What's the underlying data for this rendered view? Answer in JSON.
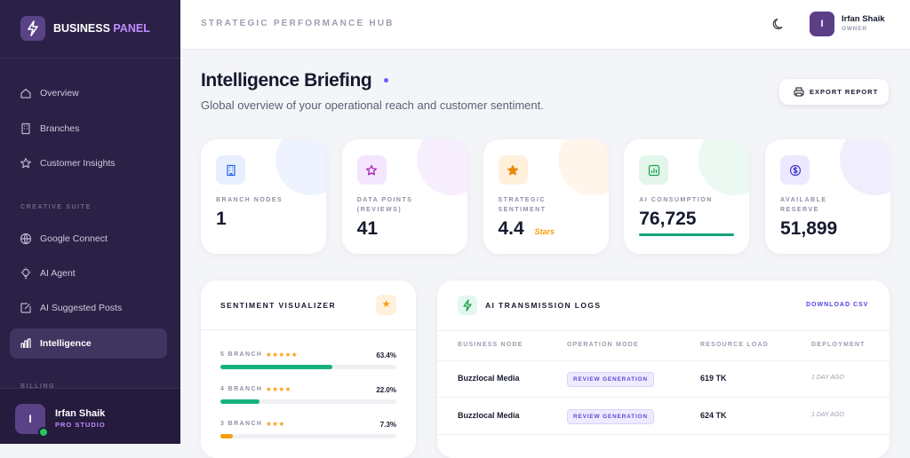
{
  "sidebar": {
    "brand": {
      "name": "BUSINESS",
      "accent": "PANEL"
    },
    "nav": [
      "Overview",
      "Branches",
      "Customer Insights"
    ],
    "section": "CREATIVE SUITE",
    "suite": [
      "Google Connect",
      "AI Agent",
      "AI Suggested Posts",
      "Intelligence"
    ],
    "billing": "BILLING",
    "user": {
      "initial": "I",
      "name": "Irfan Shaik",
      "role": "PRO STUDIO"
    }
  },
  "header": {
    "title": "STRATEGIC PERFORMANCE HUB",
    "user": {
      "initial": "I",
      "name": "Irfan Shaik",
      "role": "OWNER"
    }
  },
  "page": {
    "title": "Intelligence Briefing",
    "subtitle": "Global overview of your operational reach and customer sentiment.",
    "button": "EXPORT REPORT"
  },
  "stats": [
    {
      "label": "BRANCH NODES",
      "value": "1"
    },
    {
      "label": "DATA POINTS (REVIEWS)",
      "value": "41"
    },
    {
      "label": "STRATEGIC SENTIMENT",
      "value": "4.4",
      "unit": "Stars"
    },
    {
      "label": "AI CONSUMPTION",
      "value": "76,725"
    },
    {
      "label": "AVAILABLE RESERVE",
      "value": "51,899"
    }
  ],
  "sentiment": {
    "title": "SENTIMENT VISUALIZER",
    "rows": [
      {
        "label": "5 BRANCH",
        "stars": "★★★★★",
        "value": 63.4,
        "value_label": "63.4%"
      },
      {
        "label": "4 BRANCH",
        "stars": "★★★★",
        "value": 22.0,
        "value_label": "22.0%"
      },
      {
        "label": "3 BRANCH",
        "stars": "★★★",
        "value": 7.3,
        "value_label": "7.3%"
      }
    ]
  },
  "logs": {
    "title": "AI TRANSMISSION LOGS",
    "action": "DOWNLOAD CSV",
    "columns": [
      "BUSINESS NODE",
      "OPERATION MODE",
      "RESOURCE LOAD",
      "DEPLOYMENT"
    ],
    "rows": [
      [
        "Buzzlocal Media",
        "REVIEW GENERATION",
        "619 TK",
        "1 DAY AGO"
      ],
      [
        "Buzzlocal Media",
        "REVIEW GENERATION",
        "624 TK",
        "1 DAY AGO"
      ]
    ]
  }
}
